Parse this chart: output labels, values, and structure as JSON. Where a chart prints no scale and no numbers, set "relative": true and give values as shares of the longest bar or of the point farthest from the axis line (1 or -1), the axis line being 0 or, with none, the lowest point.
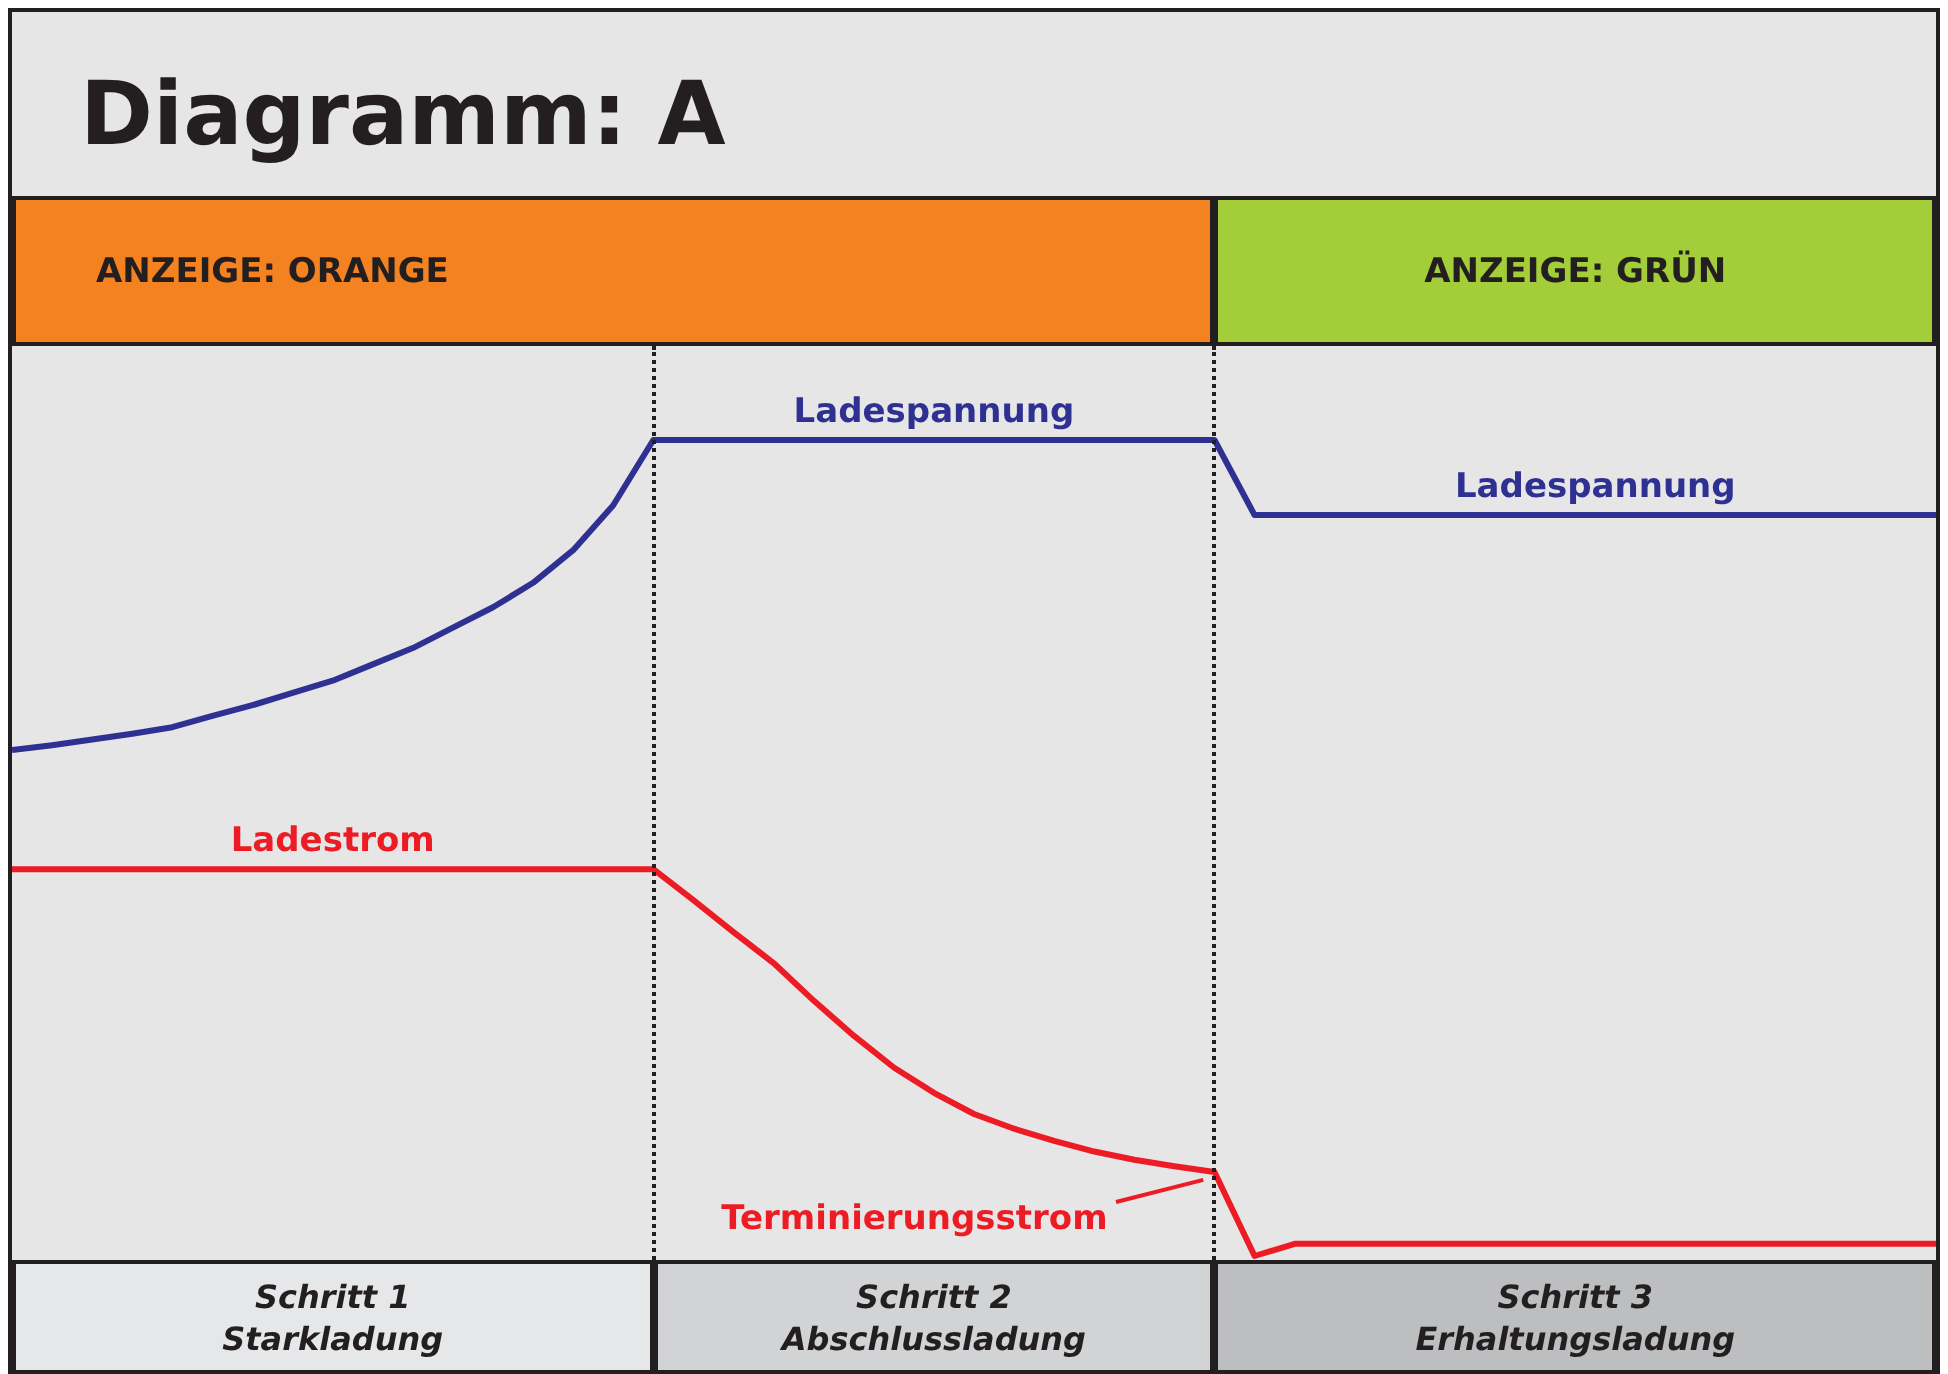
{
  "chart_data": {
    "type": "line",
    "title": "Diagramm: A",
    "relative": true,
    "categories": [
      null,
      null,
      null,
      null,
      null,
      null,
      null,
      null,
      null,
      null,
      null,
      null,
      null,
      null,
      null,
      null,
      null,
      null,
      null,
      null,
      null,
      null,
      null,
      null,
      null,
      null,
      null,
      null,
      null,
      null,
      null,
      null,
      null,
      null,
      null,
      null,
      null,
      null,
      null,
      null,
      null,
      null,
      null,
      null,
      null,
      null,
      null,
      null,
      null
    ],
    "series": [
      {
        "name": "Ladespannung",
        "color": "#2e3192",
        "values": [
          0.62,
          0.626,
          0.633,
          0.64,
          0.648,
          0.662,
          0.675,
          0.69,
          0.705,
          0.725,
          0.745,
          0.77,
          0.795,
          0.825,
          0.865,
          0.92,
          1,
          1,
          1,
          1,
          1,
          1,
          1,
          1,
          1,
          1,
          1,
          1,
          1,
          1,
          1,
          0.908,
          0.908,
          0.908,
          0.908,
          0.908,
          0.908,
          0.908,
          0.908,
          0.908,
          0.908,
          0.908,
          0.908,
          0.908,
          0.908,
          0.908,
          0.908,
          0.908,
          0.908
        ]
      },
      {
        "name": "Ladestrom",
        "color": "#ed1c24",
        "values": [
          0.474,
          0.474,
          0.474,
          0.474,
          0.474,
          0.474,
          0.474,
          0.474,
          0.474,
          0.474,
          0.474,
          0.474,
          0.474,
          0.474,
          0.474,
          0.474,
          0.474,
          0.436,
          0.397,
          0.359,
          0.313,
          0.27,
          0.231,
          0.2,
          0.174,
          0.156,
          0.141,
          0.128,
          0.118,
          0.11,
          0.103,
          0,
          0.015,
          0.015,
          0.015,
          0.015,
          0.015,
          0.015,
          0.015,
          0.015,
          0.015,
          0.015,
          0.015,
          0.015,
          0.015,
          0.015,
          0.015,
          0.015,
          0.015
        ]
      }
    ],
    "annotations": [
      "ANZEIGE:  ORANGE",
      "ANZEIGE: GRÜN",
      "Schritt 1\nStarkladung",
      "Schritt 2\nAbschlussladung",
      "Schritt 3\nErhaltungsladung",
      "Terminierungsstrom"
    ]
  }
}
